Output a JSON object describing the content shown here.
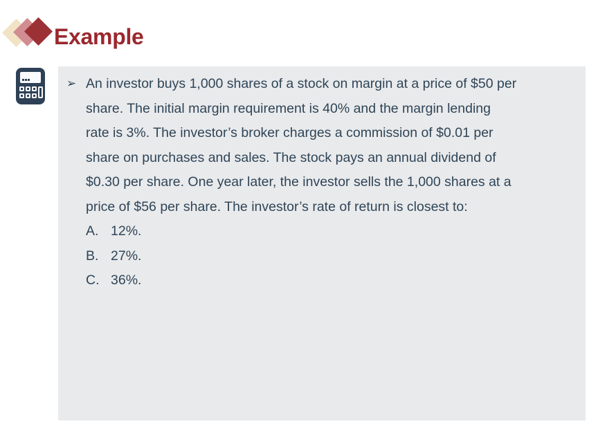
{
  "header": {
    "title": "Example"
  },
  "question": {
    "bullet_char": "➢",
    "lines": [
      "An investor buys 1,000 shares of a stock on margin at a price of $50 per",
      "share. The initial margin requirement is 40% and the margin lending",
      "rate is 3%. The investor’s broker charges a commission of $0.01 per",
      "share on purchases and sales. The stock pays an annual dividend of",
      "$0.30 per share. One year later, the investor sells the 1,000 shares at a",
      "price of $56 per share. The investor’s rate of return is closest to:"
    ]
  },
  "options": [
    {
      "letter": "A.",
      "text": "12%."
    },
    {
      "letter": "B.",
      "text": "27%."
    },
    {
      "letter": "C.",
      "text": "36%."
    }
  ],
  "icons": {
    "diamonds_decoration": "three-overlapping-diamonds",
    "calculator": "calculator-css-shape",
    "arrow_bullet": "➢"
  },
  "colors": {
    "title": "#9A282D",
    "body_text": "#2F4557",
    "panel_background": "#E9EAEC",
    "diamond_cream": "#F2E3C6",
    "diamond_pink": "#D18D91",
    "diamond_red": "#9C3135",
    "calculator_navy": "#2E4156",
    "page_background": "#FFFFFF"
  }
}
